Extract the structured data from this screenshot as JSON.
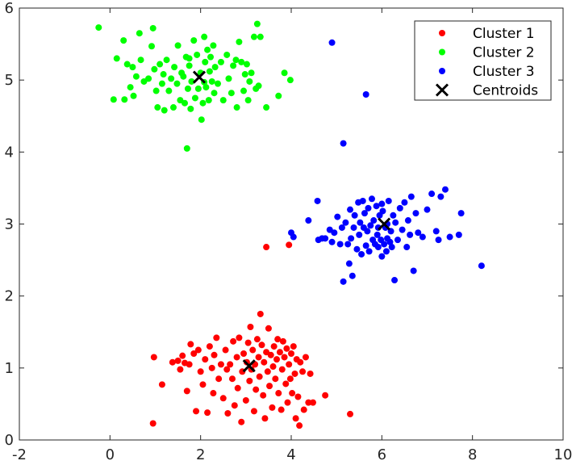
{
  "chart_data": {
    "type": "scatter",
    "title": "",
    "xlabel": "",
    "ylabel": "",
    "xlim": [
      -2,
      10
    ],
    "ylim": [
      0,
      6
    ],
    "xticks": [
      "-2",
      "0",
      "2",
      "4",
      "6",
      "8",
      "10"
    ],
    "yticks": [
      "0",
      "1",
      "2",
      "3",
      "4",
      "5",
      "6"
    ],
    "grid": false,
    "legend_position": "top-right",
    "series": [
      {
        "name": "Cluster 1",
        "color": "#ff0000",
        "marker": "dot",
        "points": [
          [
            0.95,
            0.23
          ],
          [
            0.97,
            1.15
          ],
          [
            1.15,
            0.77
          ],
          [
            1.38,
            1.08
          ],
          [
            1.5,
            1.1
          ],
          [
            1.55,
            0.98
          ],
          [
            1.6,
            1.17
          ],
          [
            1.65,
            1.07
          ],
          [
            1.7,
            0.68
          ],
          [
            1.75,
            1.05
          ],
          [
            1.78,
            1.33
          ],
          [
            1.85,
            1.2
          ],
          [
            1.9,
            0.4
          ],
          [
            1.95,
            1.25
          ],
          [
            2.0,
            0.95
          ],
          [
            2.05,
            0.77
          ],
          [
            2.1,
            1.12
          ],
          [
            2.15,
            0.38
          ],
          [
            2.2,
            1.3
          ],
          [
            2.25,
            1.0
          ],
          [
            2.28,
            0.65
          ],
          [
            2.3,
            1.18
          ],
          [
            2.35,
            1.42
          ],
          [
            2.4,
            0.85
          ],
          [
            2.45,
            1.05
          ],
          [
            2.5,
            0.58
          ],
          [
            2.55,
            1.25
          ],
          [
            2.58,
            0.98
          ],
          [
            2.6,
            0.37
          ],
          [
            2.65,
            1.05
          ],
          [
            2.7,
            0.85
          ],
          [
            2.72,
            1.37
          ],
          [
            2.75,
            0.48
          ],
          [
            2.8,
            1.15
          ],
          [
            2.82,
            0.72
          ],
          [
            2.85,
            1.42
          ],
          [
            2.9,
            0.25
          ],
          [
            2.92,
            0.95
          ],
          [
            2.95,
            1.2
          ],
          [
            3.0,
            0.55
          ],
          [
            3.02,
            1.08
          ],
          [
            3.05,
            1.35
          ],
          [
            3.08,
            0.82
          ],
          [
            3.1,
            1.57
          ],
          [
            3.12,
            0.98
          ],
          [
            3.15,
            1.25
          ],
          [
            3.18,
            0.4
          ],
          [
            3.2,
            1.05
          ],
          [
            3.22,
            0.7
          ],
          [
            3.25,
            1.4
          ],
          [
            3.28,
            1.15
          ],
          [
            3.3,
            0.88
          ],
          [
            3.32,
            1.75
          ],
          [
            3.35,
            1.32
          ],
          [
            3.38,
            0.62
          ],
          [
            3.4,
            1.08
          ],
          [
            3.42,
            0.3
          ],
          [
            3.45,
            1.22
          ],
          [
            3.48,
            0.95
          ],
          [
            3.5,
            1.55
          ],
          [
            3.52,
            0.75
          ],
          [
            3.55,
            1.18
          ],
          [
            3.58,
            0.45
          ],
          [
            3.6,
            1.02
          ],
          [
            3.62,
            1.3
          ],
          [
            3.65,
            0.85
          ],
          [
            3.68,
            1.12
          ],
          [
            3.7,
            1.4
          ],
          [
            3.72,
            0.65
          ],
          [
            3.75,
            1.22
          ],
          [
            3.78,
            0.42
          ],
          [
            3.8,
            0.98
          ],
          [
            3.82,
            1.37
          ],
          [
            3.85,
            1.15
          ],
          [
            3.88,
            0.78
          ],
          [
            3.9,
            1.27
          ],
          [
            3.92,
            0.52
          ],
          [
            3.95,
            1.05
          ],
          [
            3.98,
            0.85
          ],
          [
            4.0,
            1.2
          ],
          [
            4.02,
            0.65
          ],
          [
            4.05,
            1.3
          ],
          [
            4.08,
            0.92
          ],
          [
            4.1,
            0.3
          ],
          [
            4.12,
            1.12
          ],
          [
            4.15,
            0.6
          ],
          [
            4.18,
            0.2
          ],
          [
            4.2,
            1.08
          ],
          [
            4.25,
            0.95
          ],
          [
            4.28,
            0.42
          ],
          [
            4.32,
            1.15
          ],
          [
            4.38,
            0.52
          ],
          [
            4.42,
            0.92
          ],
          [
            4.48,
            0.52
          ],
          [
            4.75,
            0.62
          ],
          [
            5.3,
            0.36
          ],
          [
            3.45,
            2.68
          ],
          [
            3.95,
            2.71
          ]
        ]
      },
      {
        "name": "Cluster 2",
        "color": "#00ff00",
        "marker": "dot",
        "points": [
          [
            -0.25,
            5.73
          ],
          [
            0.08,
            4.73
          ],
          [
            0.15,
            5.3
          ],
          [
            0.3,
            5.55
          ],
          [
            0.32,
            4.73
          ],
          [
            0.38,
            5.22
          ],
          [
            0.45,
            4.9
          ],
          [
            0.5,
            5.18
          ],
          [
            0.52,
            4.78
          ],
          [
            0.58,
            5.05
          ],
          [
            0.65,
            5.65
          ],
          [
            0.68,
            5.28
          ],
          [
            0.75,
            4.98
          ],
          [
            0.85,
            5.02
          ],
          [
            0.92,
            5.47
          ],
          [
            0.95,
            5.72
          ],
          [
            0.98,
            5.15
          ],
          [
            1.02,
            4.85
          ],
          [
            1.05,
            4.62
          ],
          [
            1.1,
            5.22
          ],
          [
            1.15,
            4.95
          ],
          [
            1.18,
            5.08
          ],
          [
            1.2,
            4.58
          ],
          [
            1.25,
            5.28
          ],
          [
            1.3,
            4.85
          ],
          [
            1.35,
            5.02
          ],
          [
            1.4,
            4.62
          ],
          [
            1.42,
            5.18
          ],
          [
            1.48,
            4.95
          ],
          [
            1.5,
            5.48
          ],
          [
            1.55,
            4.72
          ],
          [
            1.58,
            5.1
          ],
          [
            1.62,
            5.05
          ],
          [
            1.65,
            4.68
          ],
          [
            1.68,
            5.32
          ],
          [
            1.7,
            4.05
          ],
          [
            1.72,
            4.88
          ],
          [
            1.75,
            5.2
          ],
          [
            1.78,
            4.6
          ],
          [
            1.8,
            4.98
          ],
          [
            1.85,
            5.55
          ],
          [
            1.88,
            4.75
          ],
          [
            1.92,
            5.35
          ],
          [
            1.95,
            4.88
          ],
          [
            2.0,
            5.1
          ],
          [
            2.02,
            4.45
          ],
          [
            2.05,
            4.68
          ],
          [
            2.08,
            5.6
          ],
          [
            2.1,
            5.25
          ],
          [
            2.12,
            4.9
          ],
          [
            2.15,
            5.42
          ],
          [
            2.18,
            4.72
          ],
          [
            2.2,
            5.12
          ],
          [
            2.22,
            5.32
          ],
          [
            2.25,
            4.98
          ],
          [
            2.28,
            5.48
          ],
          [
            2.3,
            4.82
          ],
          [
            2.32,
            5.18
          ],
          [
            2.38,
            4.95
          ],
          [
            2.45,
            5.25
          ],
          [
            2.5,
            4.72
          ],
          [
            2.58,
            5.35
          ],
          [
            2.62,
            5.02
          ],
          [
            2.68,
            4.82
          ],
          [
            2.72,
            5.2
          ],
          [
            2.78,
            5.28
          ],
          [
            2.8,
            4.62
          ],
          [
            2.85,
            5.53
          ],
          [
            2.9,
            5.25
          ],
          [
            2.95,
            4.85
          ],
          [
            2.98,
            5.08
          ],
          [
            3.02,
            5.22
          ],
          [
            3.05,
            4.72
          ],
          [
            3.08,
            4.98
          ],
          [
            3.12,
            5.1
          ],
          [
            3.18,
            5.6
          ],
          [
            3.22,
            4.88
          ],
          [
            3.25,
            5.78
          ],
          [
            3.28,
            4.92
          ],
          [
            3.32,
            5.6
          ],
          [
            3.45,
            4.62
          ],
          [
            3.72,
            4.78
          ],
          [
            3.85,
            5.1
          ],
          [
            3.98,
            5.0
          ],
          [
            2.08,
            4.97
          ],
          [
            1.75,
            5.3
          ]
        ]
      },
      {
        "name": "Cluster 3",
        "color": "#0000ff",
        "marker": "dot",
        "points": [
          [
            4.9,
            5.52
          ],
          [
            5.65,
            4.8
          ],
          [
            5.15,
            4.12
          ],
          [
            4.0,
            2.88
          ],
          [
            4.05,
            2.82
          ],
          [
            4.38,
            3.05
          ],
          [
            4.58,
            3.32
          ],
          [
            4.6,
            2.78
          ],
          [
            4.68,
            2.8
          ],
          [
            4.75,
            2.8
          ],
          [
            4.85,
            2.92
          ],
          [
            4.9,
            2.75
          ],
          [
            4.95,
            2.88
          ],
          [
            5.02,
            3.1
          ],
          [
            5.08,
            2.72
          ],
          [
            5.12,
            2.95
          ],
          [
            5.15,
            2.2
          ],
          [
            5.2,
            3.02
          ],
          [
            5.25,
            2.72
          ],
          [
            5.28,
            2.45
          ],
          [
            5.3,
            3.2
          ],
          [
            5.32,
            2.8
          ],
          [
            5.35,
            2.28
          ],
          [
            5.38,
            2.95
          ],
          [
            5.4,
            3.12
          ],
          [
            5.45,
            2.65
          ],
          [
            5.48,
            3.3
          ],
          [
            5.5,
            2.85
          ],
          [
            5.52,
            3.02
          ],
          [
            5.55,
            2.58
          ],
          [
            5.58,
            3.32
          ],
          [
            5.6,
            2.95
          ],
          [
            5.62,
            3.15
          ],
          [
            5.65,
            2.7
          ],
          [
            5.68,
            2.9
          ],
          [
            5.7,
            3.22
          ],
          [
            5.72,
            2.62
          ],
          [
            5.75,
            2.98
          ],
          [
            5.78,
            3.35
          ],
          [
            5.8,
            2.78
          ],
          [
            5.82,
            3.05
          ],
          [
            5.85,
            2.72
          ],
          [
            5.88,
            3.25
          ],
          [
            5.9,
            2.85
          ],
          [
            5.92,
            2.68
          ],
          [
            5.95,
            3.12
          ],
          [
            5.98,
            2.78
          ],
          [
            6.0,
            2.55
          ],
          [
            6.02,
            3.18
          ],
          [
            6.05,
            2.72
          ],
          [
            6.08,
            2.95
          ],
          [
            6.1,
            2.62
          ],
          [
            6.12,
            2.8
          ],
          [
            6.15,
            3.32
          ],
          [
            6.18,
            2.75
          ],
          [
            6.2,
            2.9
          ],
          [
            6.22,
            2.68
          ],
          [
            6.25,
            3.12
          ],
          [
            6.28,
            2.22
          ],
          [
            6.3,
            3.02
          ],
          [
            6.35,
            2.78
          ],
          [
            6.4,
            3.22
          ],
          [
            6.45,
            2.92
          ],
          [
            6.5,
            3.3
          ],
          [
            6.55,
            2.68
          ],
          [
            6.58,
            3.05
          ],
          [
            6.62,
            2.85
          ],
          [
            6.65,
            3.38
          ],
          [
            6.7,
            2.35
          ],
          [
            6.75,
            3.15
          ],
          [
            6.8,
            2.88
          ],
          [
            6.9,
            2.82
          ],
          [
            7.0,
            3.2
          ],
          [
            7.1,
            3.42
          ],
          [
            7.2,
            2.9
          ],
          [
            7.25,
            2.78
          ],
          [
            7.3,
            3.38
          ],
          [
            7.4,
            3.48
          ],
          [
            7.5,
            2.82
          ],
          [
            7.7,
            2.85
          ],
          [
            7.75,
            3.15
          ],
          [
            8.2,
            2.42
          ],
          [
            6.0,
            3.28
          ],
          [
            5.92,
            2.95
          ],
          [
            6.12,
            3.0
          ]
        ]
      },
      {
        "name": "Centroids",
        "color": "#000000",
        "marker": "x",
        "points": [
          [
            1.97,
            5.04
          ],
          [
            3.07,
            1.03
          ],
          [
            6.05,
            3.0
          ]
        ]
      }
    ]
  }
}
